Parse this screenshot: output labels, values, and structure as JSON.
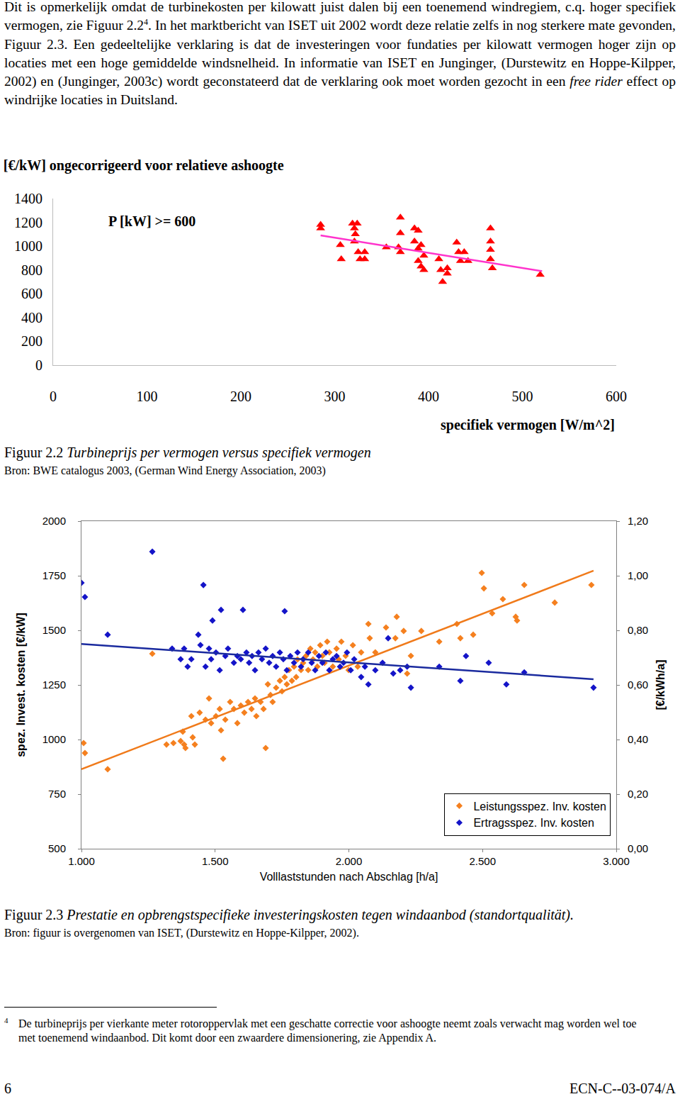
{
  "paragraph": [
    "Dit is opmerkelijk omdat de turbinekosten per kilowatt juist dalen bij een toenemend windregiem, c.q. hoger specifiek vermogen, zie Figuur 2.2",
    {
      "sup": "4"
    },
    ". In het marktbericht van ISET uit 2002 wordt deze relatie zelfs in nog sterkere mate gevonden, Figuur 2.3. Een gedeeltelijke verklaring is dat de investeringen voor fundaties per kilowatt vermogen hoger zijn op locaties met een hoge gemiddelde windsnelheid. In informatie van ISET en Junginger, (Durstewitz en Hoppe-Kilpper, 2002) en (Junginger, 2003c) wordt geconstateerd dat de verklaring ook moet worden gezocht in een ",
    {
      "italic": "free rider"
    },
    " effect op windrijke locaties in Duitsland."
  ],
  "chart_data": [
    {
      "type": "scatter",
      "title": "[€/kW] ongecorrigeerd voor relatieve ashoogte",
      "xlabel": "specifiek vermogen [W/m^2]",
      "xlim": [
        0,
        600
      ],
      "xticks": [
        0,
        100,
        200,
        300,
        400,
        500,
        600
      ],
      "ylim": [
        0,
        1400
      ],
      "yticks": [
        0,
        200,
        400,
        600,
        800,
        1000,
        1200,
        1400
      ],
      "grid": false,
      "annotations": [
        {
          "text": "P [kW] >= 600",
          "x": 105,
          "y": 1210
        }
      ],
      "series": [
        {
          "color": "#ff0000",
          "marker": "triangle",
          "x": [
            285,
            285,
            306,
            319,
            321,
            322,
            321,
            325,
            327,
            307,
            332,
            332,
            324,
            355,
            370,
            370,
            368,
            370,
            385,
            385,
            389,
            389,
            392,
            395,
            392,
            395,
            389,
            411,
            413,
            415,
            420,
            420,
            430,
            432,
            434,
            442,
            438,
            466,
            466,
            466,
            466,
            468,
            519
          ],
          "values": [
            1180,
            1150,
            1010,
            1190,
            1150,
            1100,
            1040,
            950,
            890,
            890,
            950,
            890,
            1190,
            990,
            1240,
            1110,
            990,
            950,
            1150,
            1040,
            1130,
            980,
            1010,
            920,
            830,
            800,
            875,
            890,
            800,
            700,
            770,
            815,
            1030,
            950,
            875,
            875,
            950,
            1150,
            1040,
            970,
            890,
            815,
            760
          ],
          "trendline": {
            "x": [
              285,
              521
            ],
            "y": [
              1090,
              790
            ],
            "color": "#ff33cc"
          }
        }
      ]
    },
    {
      "type": "scatter",
      "xlabel": "Volllaststunden nach Abschlag [h/a]",
      "ylabel": "spez. Invest. kosten [€/kW]",
      "y2label": "[€/kWh/a]",
      "xlim": [
        1000,
        3000
      ],
      "xticks": [
        {
          "value": 1000,
          "label": "1.000"
        },
        {
          "value": 1500,
          "label": "1.500"
        },
        {
          "value": 2000,
          "label": "2.000"
        },
        {
          "value": 2500,
          "label": "2.500"
        },
        {
          "value": 3000,
          "label": "3.000"
        }
      ],
      "ylim": [
        500,
        2000
      ],
      "yticks": [
        500,
        750,
        1000,
        1250,
        1500,
        1750,
        2000
      ],
      "y2lim": [
        0,
        1.2
      ],
      "y2ticks": [
        {
          "value": 0,
          "label": "0,00"
        },
        {
          "value": 0.2,
          "label": "0,20"
        },
        {
          "value": 0.4,
          "label": "0,40"
        },
        {
          "value": 0.6,
          "label": "0,60"
        },
        {
          "value": 0.8,
          "label": "0,80"
        },
        {
          "value": 1.0,
          "label": "1,00"
        },
        {
          "value": 1.2,
          "label": "1,20"
        }
      ],
      "grid": false,
      "legend": "lower right",
      "series": [
        {
          "name": "Leistungsspez. Inv. kosten",
          "color": "#f5801f",
          "marker": "diamond",
          "x": [
            1008,
            1013,
            1098,
            1265,
            1318,
            1344,
            1371,
            1379,
            1384,
            1389,
            1411,
            1416,
            1424,
            1442,
            1464,
            1477,
            1485,
            1503,
            1517,
            1522,
            1530,
            1538,
            1556,
            1570,
            1583,
            1596,
            1609,
            1623,
            1636,
            1649,
            1654,
            1670,
            1681,
            1689,
            1697,
            1707,
            1715,
            1728,
            1742,
            1750,
            1760,
            1768,
            1776,
            1787,
            1795,
            1803,
            1808,
            1821,
            1829,
            1840,
            1848,
            1856,
            1866,
            1874,
            1882,
            1893,
            1901,
            1909,
            1919,
            1927,
            1940,
            1954,
            1962,
            1972,
            1988,
            1999,
            2015,
            2033,
            2046,
            2073,
            2078,
            2099,
            2139,
            2174,
            2179,
            2205,
            2218,
            2232,
            2271,
            2338,
            2404,
            2417,
            2465,
            2497,
            2505,
            2536,
            2576,
            2624,
            2629,
            2656,
            2770,
            2907
          ],
          "values": [
            984,
            938,
            864,
            1393,
            977,
            984,
            993,
            1036,
            977,
            961,
            1107,
            1010,
            977,
            1123,
            1091,
            1188,
            1075,
            1107,
            1140,
            1042,
            912,
            1091,
            1172,
            1140,
            1075,
            1156,
            1123,
            1172,
            1140,
            1188,
            1107,
            1172,
            1140,
            961,
            1253,
            1204,
            1172,
            1237,
            1269,
            1221,
            1286,
            1253,
            1318,
            1269,
            1334,
            1286,
            1367,
            1318,
            1351,
            1383,
            1318,
            1416,
            1367,
            1399,
            1334,
            1432,
            1383,
            1351,
            1448,
            1399,
            1334,
            1416,
            1367,
            1448,
            1383,
            1318,
            1432,
            1334,
            1399,
            1529,
            1464,
            1399,
            1513,
            1464,
            1562,
            1497,
            1302,
            1383,
            1497,
            1448,
            1529,
            1464,
            1480,
            1763,
            1692,
            1578,
            1643,
            1562,
            1545,
            1708,
            1627,
            1708
          ],
          "trendline": {
            "x": [
              1000,
              2915
            ],
            "y": [
              864,
              1773
            ],
            "color": "#f07a1a"
          }
        },
        {
          "name": "Ertragsspez. Inv. kosten",
          "color": "#1414c8",
          "marker": "diamond",
          "axis": "y2",
          "x": [
            1000,
            1013,
            1098,
            1265,
            1339,
            1371,
            1384,
            1397,
            1411,
            1437,
            1445,
            1456,
            1464,
            1477,
            1485,
            1490,
            1503,
            1517,
            1522,
            1538,
            1548,
            1570,
            1583,
            1596,
            1604,
            1617,
            1627,
            1638,
            1649,
            1662,
            1675,
            1689,
            1702,
            1715,
            1728,
            1742,
            1755,
            1760,
            1768,
            1781,
            1795,
            1808,
            1821,
            1829,
            1848,
            1861,
            1874,
            1888,
            1901,
            1914,
            1927,
            1940,
            1954,
            1967,
            1980,
            1993,
            2007,
            2020,
            2046,
            2060,
            2073,
            2099,
            2126,
            2147,
            2166,
            2192,
            2218,
            2232,
            2338,
            2417,
            2438,
            2523,
            2589,
            2656,
            2915
          ],
          "values": [
            0.974,
            0.922,
            0.784,
            1.088,
            0.733,
            0.694,
            0.733,
            0.667,
            0.694,
            0.784,
            0.746,
            0.966,
            0.667,
            0.733,
            0.694,
            0.836,
            0.719,
            0.654,
            0.875,
            0.706,
            0.733,
            0.681,
            0.706,
            0.694,
            0.875,
            0.719,
            0.681,
            0.706,
            0.654,
            0.719,
            0.694,
            0.733,
            0.681,
            0.706,
            0.667,
            0.719,
            0.694,
            0.87,
            0.654,
            0.706,
            0.681,
            0.719,
            0.667,
            0.694,
            0.719,
            0.681,
            0.654,
            0.706,
            0.681,
            0.719,
            0.654,
            0.694,
            0.706,
            0.667,
            0.681,
            0.719,
            0.654,
            0.694,
            0.629,
            0.667,
            0.602,
            0.654,
            0.681,
            0.771,
            0.642,
            0.654,
            0.667,
            0.59,
            0.667,
            0.615,
            0.706,
            0.681,
            0.602,
            0.646,
            0.59
          ],
          "trendline": {
            "x": [
              1000,
              2915
            ],
            "y": [
              0.75,
              0.621
            ],
            "color": "#1a2a9e"
          }
        }
      ]
    }
  ],
  "captions": [
    {
      "label": "Figuur 2.2",
      "text": "Turbineprijs per vermogen versus specifiek vermogen",
      "source": "Bron: BWE catalogus 2003, (German Wind Energy Association, 2003)"
    },
    {
      "label": "Figuur 2.3",
      "text": "Prestatie en opbrengstspecifieke investeringskosten tegen windaanbod (standortqualität).",
      "source": "Bron: figuur is overgenomen van ISET, (Durstewitz en Hoppe-Kilpper, 2002)."
    }
  ],
  "footnote": {
    "mark": "4",
    "text": "De turbineprijs per vierkante meter rotoroppervlak met een geschatte correctie voor ashoogte neemt zoals verwacht mag worden wel toe met toenemend windaanbod. Dit komt door een zwaardere dimensionering, zie Appendix A."
  },
  "footer": {
    "page": "6",
    "code": "ECN-C--03-074/A"
  }
}
